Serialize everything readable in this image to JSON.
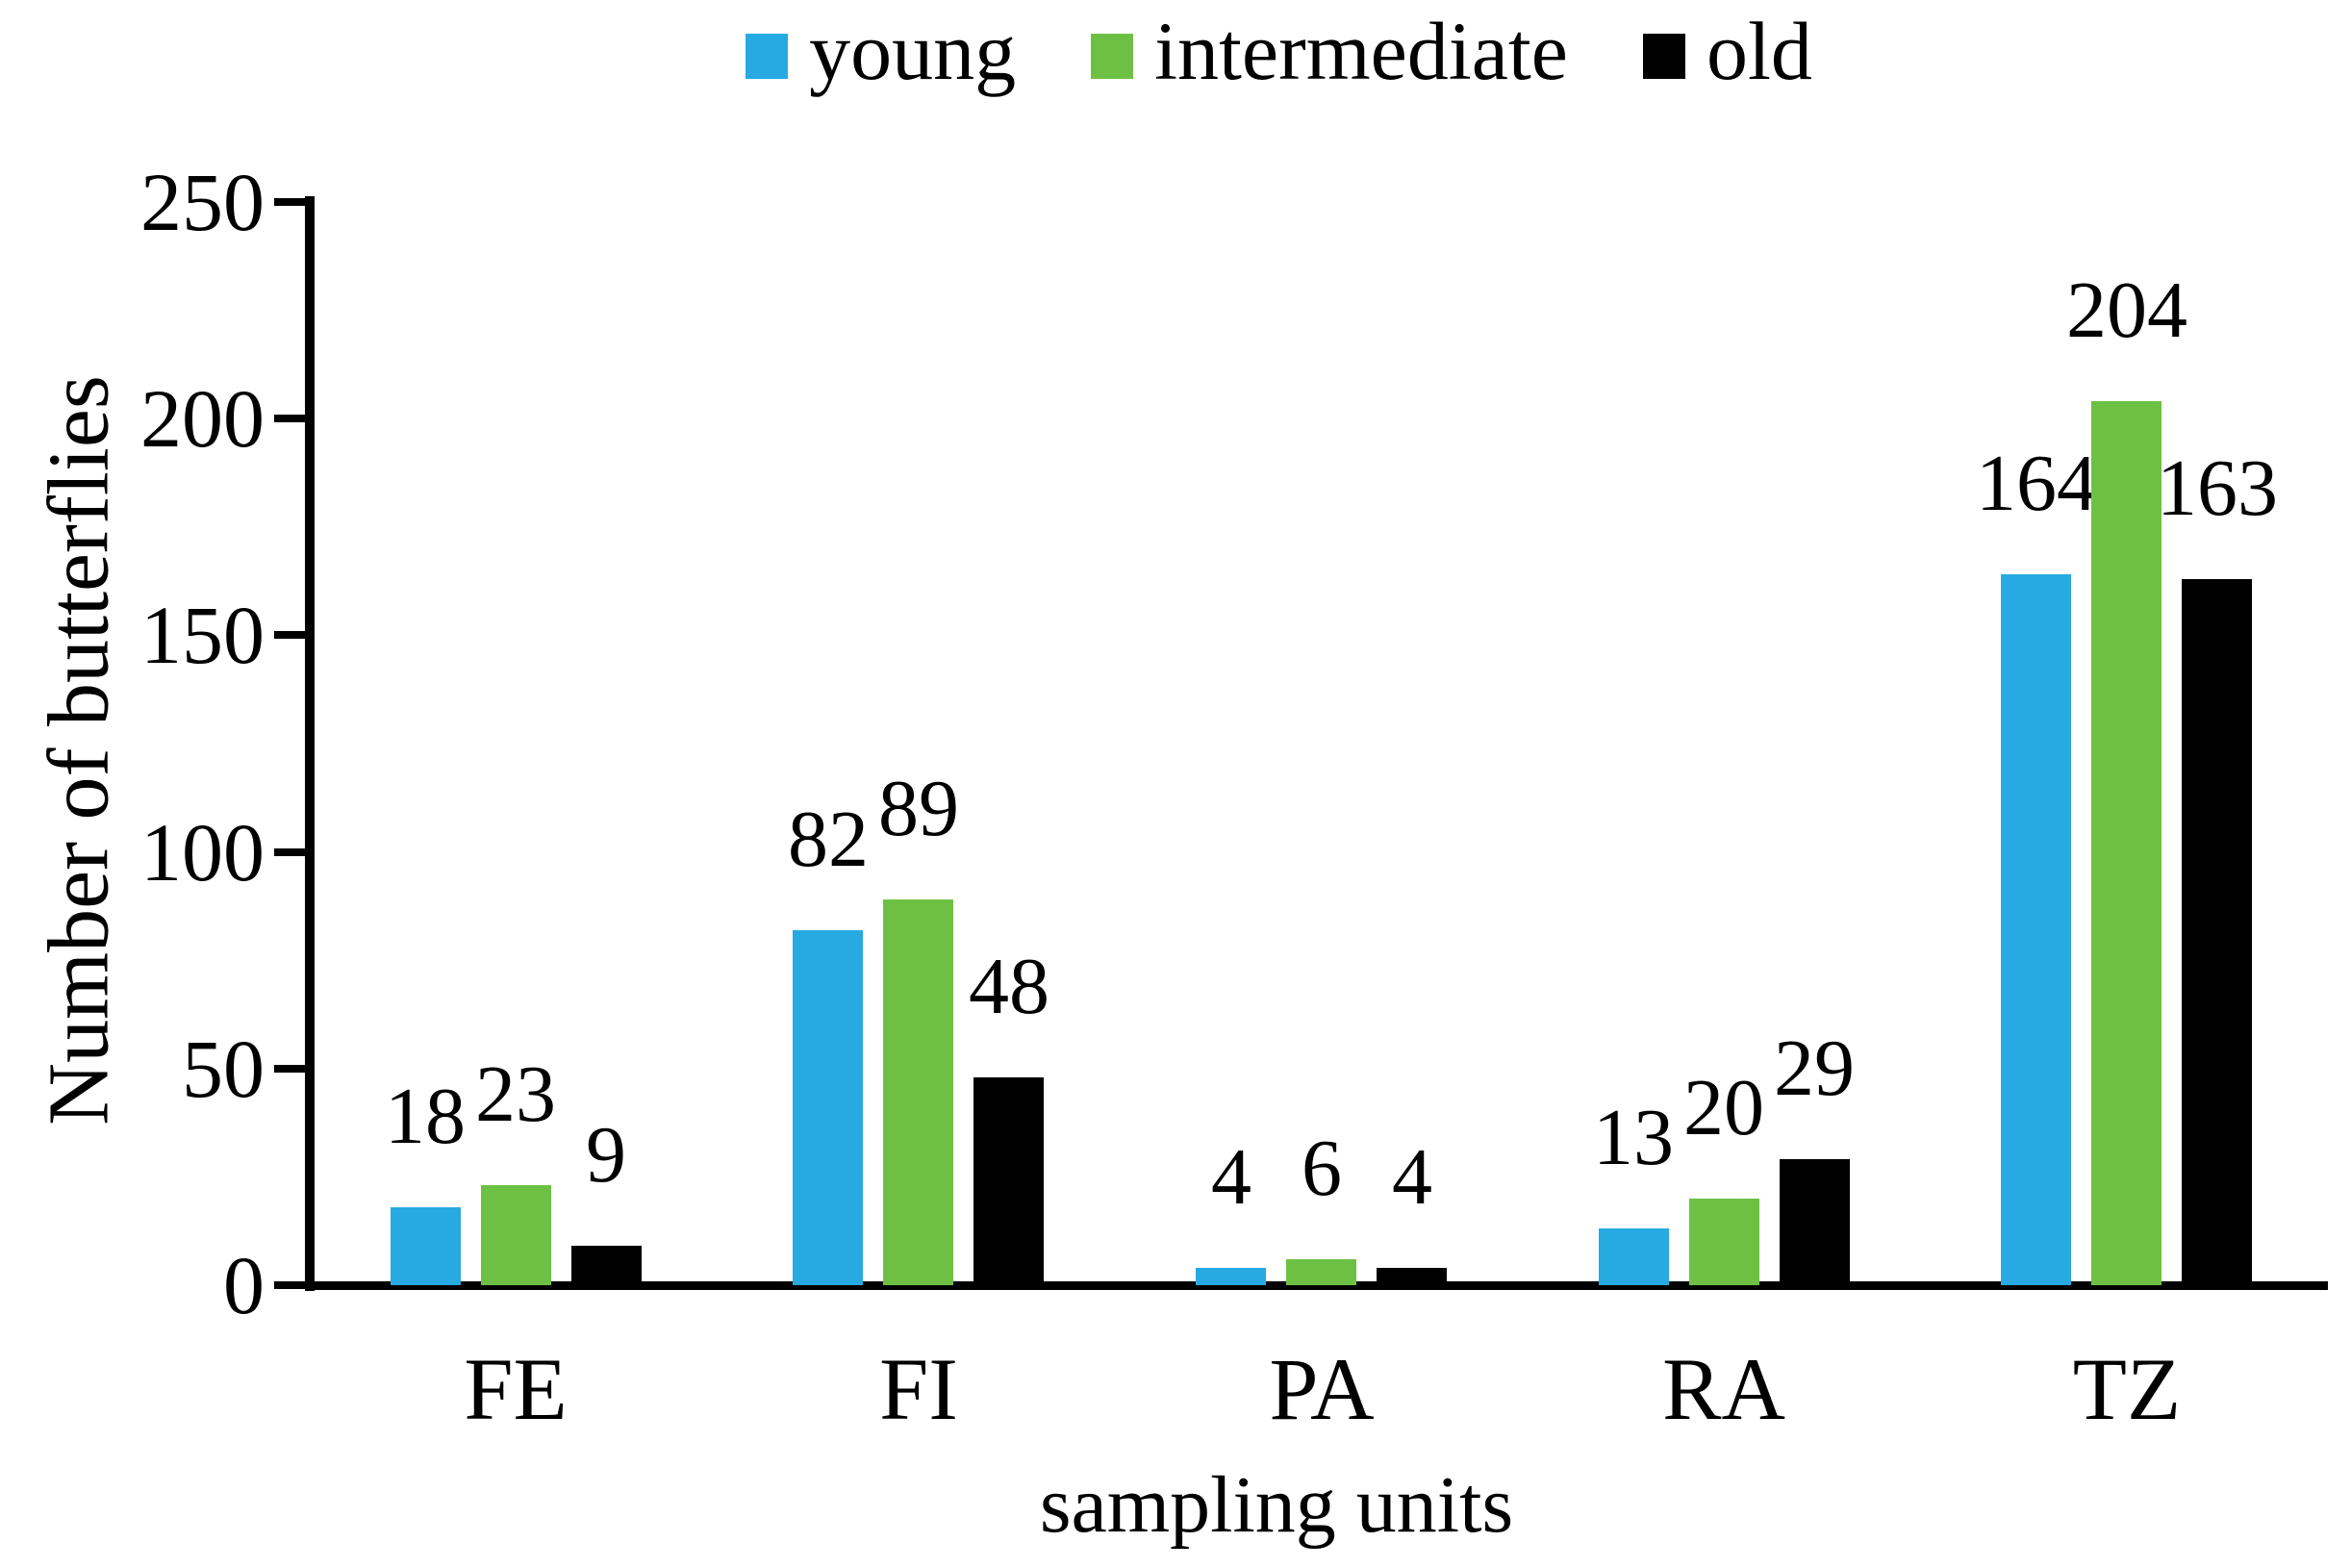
{
  "chart_data": {
    "type": "bar",
    "title": "",
    "categories": [
      "FE",
      "FI",
      "PA",
      "RA",
      "TZ"
    ],
    "series": [
      {
        "name": "young",
        "color": "#27AAE1",
        "values": [
          18,
          82,
          4,
          13,
          164
        ]
      },
      {
        "name": "intermediate",
        "color": "#6EC044",
        "values": [
          23,
          89,
          6,
          20,
          204
        ]
      },
      {
        "name": "old",
        "color": "#000000",
        "values": [
          9,
          48,
          4,
          29,
          163
        ]
      }
    ],
    "xlabel": "sampling units",
    "ylabel": "Number of butterflies",
    "ylim": [
      0,
      250
    ],
    "yticks": [
      0,
      50,
      100,
      150,
      200,
      250
    ],
    "grid": false,
    "legend_position": "top",
    "bar_labels": true,
    "axis_color": "#000000"
  }
}
